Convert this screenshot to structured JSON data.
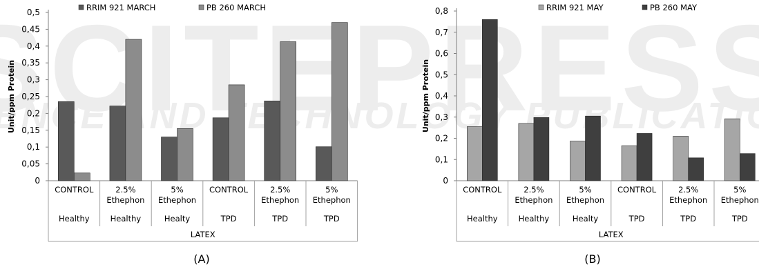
{
  "watermark": {
    "line1": "SCITEPRESS",
    "line2": "SCIENCE AND TECHNOLOGY PUBLICATIONS"
  },
  "chart_data": [
    {
      "type": "bar",
      "panel_label": "(A)",
      "ylabel": "Unit/ppm Protein",
      "xlabel": "LATEX",
      "ylim": [
        0,
        0.5
      ],
      "ytick_step": 0.05,
      "yticks": [
        "0",
        "0,05",
        "0,1",
        "0,15",
        "0,2",
        "0,25",
        "0,3",
        "0,35",
        "0,4",
        "0,45",
        "0,5"
      ],
      "grid": false,
      "legend_position": "top",
      "categories": [
        {
          "treatment": [
            "CONTROL"
          ],
          "condition": "Healthy"
        },
        {
          "treatment": [
            "2.5%",
            "Ethephon"
          ],
          "condition": "Healthy"
        },
        {
          "treatment": [
            "5%",
            "Ethephon"
          ],
          "condition": "Healty"
        },
        {
          "treatment": [
            "CONTROL"
          ],
          "condition": "TPD"
        },
        {
          "treatment": [
            "2.5%",
            "Ethephon"
          ],
          "condition": "TPD"
        },
        {
          "treatment": [
            "5%",
            "Ethephon"
          ],
          "condition": "TPD"
        }
      ],
      "series": [
        {
          "name": "RRIM 921 MARCH",
          "color": "#595959",
          "values": [
            0.235,
            0.222,
            0.13,
            0.187,
            0.237,
            0.101
          ]
        },
        {
          "name": "PB 260 MARCH",
          "color": "#8c8c8c",
          "values": [
            0.023,
            0.42,
            0.155,
            0.285,
            0.413,
            0.47
          ]
        }
      ]
    },
    {
      "type": "bar",
      "panel_label": "(B)",
      "ylabel": "Unit/ppm Protein",
      "xlabel": "LATEX",
      "ylim": [
        0,
        0.8
      ],
      "ytick_step": 0.1,
      "yticks": [
        "0",
        "0,1",
        "0,2",
        "0,3",
        "0,4",
        "0,5",
        "0,6",
        "0,7",
        "0,8"
      ],
      "grid": false,
      "legend_position": "top",
      "categories": [
        {
          "treatment": [
            "CONTROL"
          ],
          "condition": "Healthy"
        },
        {
          "treatment": [
            "2.5%",
            "Ethephon"
          ],
          "condition": "Healthy"
        },
        {
          "treatment": [
            "5%",
            "Ethephon"
          ],
          "condition": "Healty"
        },
        {
          "treatment": [
            "CONTROL"
          ],
          "condition": "TPD"
        },
        {
          "treatment": [
            "2.5%",
            "Ethephon"
          ],
          "condition": "TPD"
        },
        {
          "treatment": [
            "5%",
            "Ethephon"
          ],
          "condition": "TPD"
        }
      ],
      "series": [
        {
          "name": "RRIM 921 MAY",
          "color": "#a6a6a6",
          "values": [
            0.255,
            0.27,
            0.187,
            0.165,
            0.21,
            0.292
          ]
        },
        {
          "name": "PB 260 MAY",
          "color": "#3f3f3f",
          "values": [
            0.76,
            0.298,
            0.305,
            0.223,
            0.108,
            0.128
          ]
        }
      ]
    }
  ]
}
